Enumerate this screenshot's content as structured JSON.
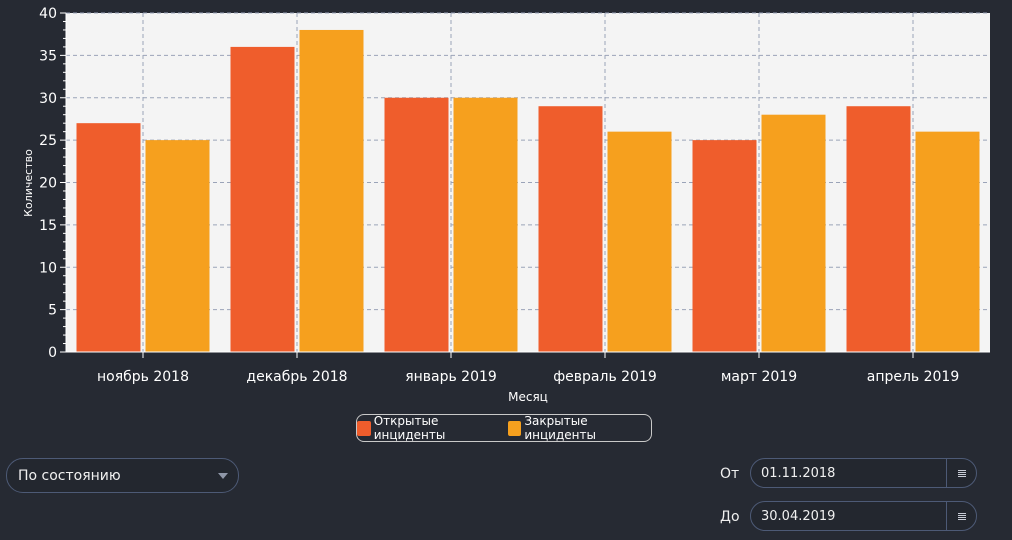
{
  "chart_data": {
    "type": "bar",
    "categories": [
      "ноябрь 2018",
      "декабрь 2018",
      "январь 2019",
      "февраль 2019",
      "март 2019",
      "апрель 2019"
    ],
    "series": [
      {
        "name": "Открытые инциденты",
        "values": [
          27,
          36,
          30,
          29,
          25,
          29
        ],
        "color": "#ef5d2c"
      },
      {
        "name": "Закрытые инциденты",
        "values": [
          25,
          38,
          30,
          26,
          28,
          26
        ],
        "color": "#f6a01e"
      }
    ],
    "xlabel": "Месяц",
    "ylabel": "Количество",
    "ylim": [
      0,
      40
    ],
    "yticks": [
      0,
      5,
      10,
      15,
      20,
      25,
      30,
      35,
      40
    ],
    "grid": true,
    "legend_position": "bottom"
  },
  "filters": {
    "state_dropdown": {
      "value": "По состоянию"
    },
    "date_from": {
      "label": "От",
      "value": "01.11.2018"
    },
    "date_to": {
      "label": "До",
      "value": "30.04.2019"
    }
  },
  "colors": {
    "background": "#262a33",
    "plot_bg": "#f4f4f4",
    "grid": "#9aa3b8",
    "field_border": "#4d5a76"
  },
  "icons": {
    "dropdown": "chevron-down-icon",
    "calendar": "calendar-icon"
  }
}
